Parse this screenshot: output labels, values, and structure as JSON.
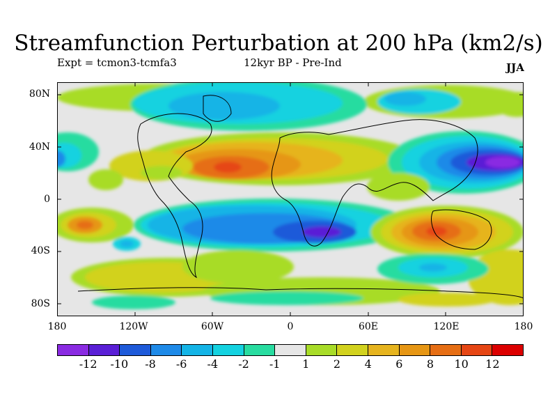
{
  "title": "Streamfunction Perturbation at 200 hPa (km2/s)",
  "experiment_label": "Expt = tcmon3-tcmfa3",
  "period_label": "12kyr BP - Pre-Ind",
  "season_label": "JJA",
  "lat_labels": [
    "80N",
    "40N",
    "0",
    "40S",
    "80S"
  ],
  "lat_values": [
    80,
    40,
    0,
    -40,
    -80
  ],
  "lon_labels": [
    "180",
    "120W",
    "60W",
    "0",
    "60E",
    "120E",
    "180"
  ],
  "lon_values": [
    -180,
    -120,
    -60,
    0,
    60,
    120,
    180
  ],
  "colorbar": {
    "colors": [
      "#8a2be2",
      "#5a1fd6",
      "#1e5ad9",
      "#1e8ae8",
      "#14b4e6",
      "#14d2e0",
      "#28dca0",
      "#e6e6e6",
      "#a8dc28",
      "#d2d21e",
      "#e6b41e",
      "#e69614",
      "#e66e14",
      "#e64614",
      "#dc0000"
    ],
    "labels": [
      "-12",
      "-10",
      "-8",
      "-6",
      "-4",
      "-2",
      "-1",
      "1",
      "2",
      "4",
      "6",
      "8",
      "10",
      "12"
    ]
  }
}
